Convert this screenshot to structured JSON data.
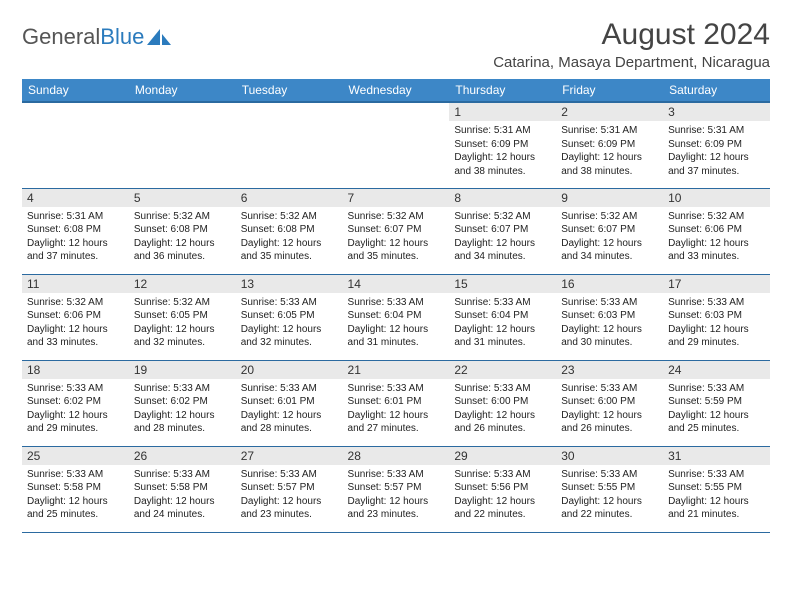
{
  "logo": {
    "text_a": "General",
    "text_b": "Blue"
  },
  "title": "August 2024",
  "location": "Catarina, Masaya Department, Nicaragua",
  "colors": {
    "header_bg": "#3d87c7",
    "header_border": "#2b6aa0",
    "daynum_bg": "#e9e9e9",
    "logo_blue": "#2b7bbd"
  },
  "weekdays": [
    "Sunday",
    "Monday",
    "Tuesday",
    "Wednesday",
    "Thursday",
    "Friday",
    "Saturday"
  ],
  "weeks": [
    [
      null,
      null,
      null,
      null,
      {
        "n": "1",
        "sr": "5:31 AM",
        "ss": "6:09 PM",
        "dl": "12 hours and 38 minutes."
      },
      {
        "n": "2",
        "sr": "5:31 AM",
        "ss": "6:09 PM",
        "dl": "12 hours and 38 minutes."
      },
      {
        "n": "3",
        "sr": "5:31 AM",
        "ss": "6:09 PM",
        "dl": "12 hours and 37 minutes."
      }
    ],
    [
      {
        "n": "4",
        "sr": "5:31 AM",
        "ss": "6:08 PM",
        "dl": "12 hours and 37 minutes."
      },
      {
        "n": "5",
        "sr": "5:32 AM",
        "ss": "6:08 PM",
        "dl": "12 hours and 36 minutes."
      },
      {
        "n": "6",
        "sr": "5:32 AM",
        "ss": "6:08 PM",
        "dl": "12 hours and 35 minutes."
      },
      {
        "n": "7",
        "sr": "5:32 AM",
        "ss": "6:07 PM",
        "dl": "12 hours and 35 minutes."
      },
      {
        "n": "8",
        "sr": "5:32 AM",
        "ss": "6:07 PM",
        "dl": "12 hours and 34 minutes."
      },
      {
        "n": "9",
        "sr": "5:32 AM",
        "ss": "6:07 PM",
        "dl": "12 hours and 34 minutes."
      },
      {
        "n": "10",
        "sr": "5:32 AM",
        "ss": "6:06 PM",
        "dl": "12 hours and 33 minutes."
      }
    ],
    [
      {
        "n": "11",
        "sr": "5:32 AM",
        "ss": "6:06 PM",
        "dl": "12 hours and 33 minutes."
      },
      {
        "n": "12",
        "sr": "5:32 AM",
        "ss": "6:05 PM",
        "dl": "12 hours and 32 minutes."
      },
      {
        "n": "13",
        "sr": "5:33 AM",
        "ss": "6:05 PM",
        "dl": "12 hours and 32 minutes."
      },
      {
        "n": "14",
        "sr": "5:33 AM",
        "ss": "6:04 PM",
        "dl": "12 hours and 31 minutes."
      },
      {
        "n": "15",
        "sr": "5:33 AM",
        "ss": "6:04 PM",
        "dl": "12 hours and 31 minutes."
      },
      {
        "n": "16",
        "sr": "5:33 AM",
        "ss": "6:03 PM",
        "dl": "12 hours and 30 minutes."
      },
      {
        "n": "17",
        "sr": "5:33 AM",
        "ss": "6:03 PM",
        "dl": "12 hours and 29 minutes."
      }
    ],
    [
      {
        "n": "18",
        "sr": "5:33 AM",
        "ss": "6:02 PM",
        "dl": "12 hours and 29 minutes."
      },
      {
        "n": "19",
        "sr": "5:33 AM",
        "ss": "6:02 PM",
        "dl": "12 hours and 28 minutes."
      },
      {
        "n": "20",
        "sr": "5:33 AM",
        "ss": "6:01 PM",
        "dl": "12 hours and 28 minutes."
      },
      {
        "n": "21",
        "sr": "5:33 AM",
        "ss": "6:01 PM",
        "dl": "12 hours and 27 minutes."
      },
      {
        "n": "22",
        "sr": "5:33 AM",
        "ss": "6:00 PM",
        "dl": "12 hours and 26 minutes."
      },
      {
        "n": "23",
        "sr": "5:33 AM",
        "ss": "6:00 PM",
        "dl": "12 hours and 26 minutes."
      },
      {
        "n": "24",
        "sr": "5:33 AM",
        "ss": "5:59 PM",
        "dl": "12 hours and 25 minutes."
      }
    ],
    [
      {
        "n": "25",
        "sr": "5:33 AM",
        "ss": "5:58 PM",
        "dl": "12 hours and 25 minutes."
      },
      {
        "n": "26",
        "sr": "5:33 AM",
        "ss": "5:58 PM",
        "dl": "12 hours and 24 minutes."
      },
      {
        "n": "27",
        "sr": "5:33 AM",
        "ss": "5:57 PM",
        "dl": "12 hours and 23 minutes."
      },
      {
        "n": "28",
        "sr": "5:33 AM",
        "ss": "5:57 PM",
        "dl": "12 hours and 23 minutes."
      },
      {
        "n": "29",
        "sr": "5:33 AM",
        "ss": "5:56 PM",
        "dl": "12 hours and 22 minutes."
      },
      {
        "n": "30",
        "sr": "5:33 AM",
        "ss": "5:55 PM",
        "dl": "12 hours and 22 minutes."
      },
      {
        "n": "31",
        "sr": "5:33 AM",
        "ss": "5:55 PM",
        "dl": "12 hours and 21 minutes."
      }
    ]
  ],
  "labels": {
    "sunrise": "Sunrise:",
    "sunset": "Sunset:",
    "daylight": "Daylight:"
  }
}
